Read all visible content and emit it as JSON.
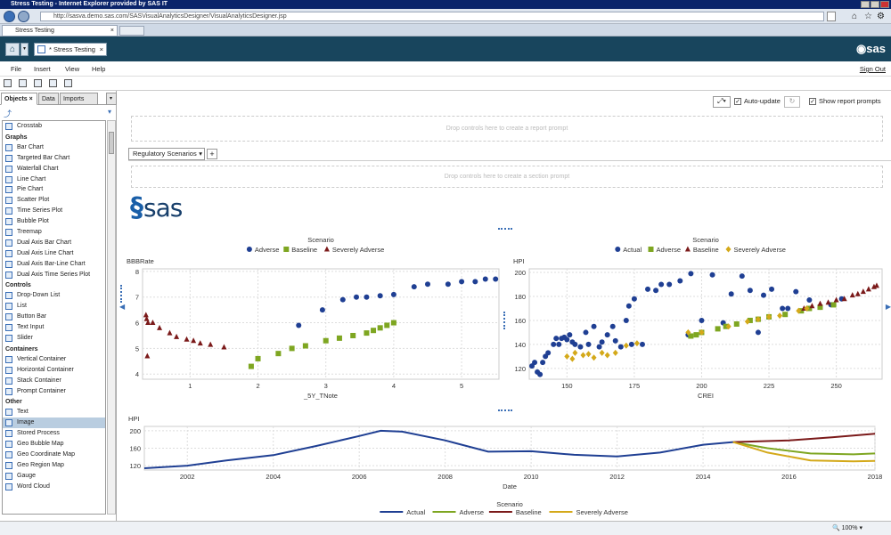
{
  "window": {
    "title": "Stress Testing - Internet Explorer provided by SAS IT"
  },
  "browser": {
    "url": "http://sasva.demo.sas.com/SASVisualAnalyticsDesigner/VisualAnalyticsDesigner.jsp",
    "tab_label": "Stress Testing",
    "zoom": "100%"
  },
  "app": {
    "tab_label": "* Stress Testing",
    "logo": "sas",
    "sign_out": "Sign Out",
    "home_icon": "home-icon"
  },
  "menu": {
    "file": "File",
    "insert": "Insert",
    "view": "View",
    "help": "Help"
  },
  "left_panel": {
    "tabs": [
      "Objects",
      "Data",
      "Imports"
    ],
    "first_item": "Crosstab",
    "sections": [
      {
        "header": "Graphs",
        "items": [
          "Bar Chart",
          "Targeted Bar Chart",
          "Waterfall Chart",
          "Line Chart",
          "Pie Chart",
          "Scatter Plot",
          "Time Series Plot",
          "Bubble Plot",
          "Treemap",
          "Dual Axis Bar Chart",
          "Dual Axis Line Chart",
          "Dual Axis Bar-Line Chart",
          "Dual Axis Time Series Plot"
        ]
      },
      {
        "header": "Controls",
        "items": [
          "Drop-Down List",
          "List",
          "Button Bar",
          "Text Input",
          "Slider"
        ]
      },
      {
        "header": "Containers",
        "items": [
          "Vertical Container",
          "Horizontal Container",
          "Stack Container",
          "Prompt Container"
        ]
      },
      {
        "header": "Other",
        "items": [
          "Text",
          "Image",
          "Stored Process",
          "Geo Bubble Map",
          "Geo Coordinate Map",
          "Geo Region Map",
          "Gauge",
          "Word Cloud"
        ]
      }
    ],
    "selected": "Image"
  },
  "report": {
    "auto_update": "Auto-update",
    "show_prompts": "Show report prompts",
    "report_prompt": "Drop controls here to create a report prompt",
    "section_tab": "Regulatory Scenarios",
    "section_prompt": "Drop controls here to create a section prompt",
    "logo_text": "sas"
  },
  "colors": {
    "actual": "#1f3f93",
    "adverse": "#7ea621",
    "baseline": "#7b1a1a",
    "severe": "#d4a91a"
  },
  "chart_data": [
    {
      "type": "scatter",
      "title": "",
      "legend_title": "Scenario",
      "legend_position": "top",
      "xlabel": "_5Y_TNote",
      "ylabel": "BBBRate",
      "xlim": [
        0.3,
        5.55
      ],
      "ylim": [
        3.8,
        8.1
      ],
      "xticks": [
        1,
        2,
        3,
        4,
        5
      ],
      "yticks": [
        4,
        5,
        6,
        7,
        8
      ],
      "series": [
        {
          "name": "Adverse",
          "color": "#1f3f93",
          "shape": "circle",
          "points": [
            [
              2.6,
              5.9
            ],
            [
              2.95,
              6.5
            ],
            [
              3.25,
              6.9
            ],
            [
              3.45,
              7.0
            ],
            [
              3.6,
              7.0
            ],
            [
              3.8,
              7.05
            ],
            [
              4.0,
              7.1
            ],
            [
              4.3,
              7.4
            ],
            [
              4.5,
              7.5
            ],
            [
              4.8,
              7.5
            ],
            [
              5.0,
              7.6
            ],
            [
              5.2,
              7.6
            ],
            [
              5.35,
              7.7
            ],
            [
              5.5,
              7.7
            ]
          ]
        },
        {
          "name": "Baseline",
          "color": "#7ea621",
          "shape": "square",
          "points": [
            [
              1.9,
              4.3
            ],
            [
              2.0,
              4.6
            ],
            [
              2.3,
              4.8
            ],
            [
              2.5,
              5.0
            ],
            [
              2.7,
              5.1
            ],
            [
              3.0,
              5.3
            ],
            [
              3.2,
              5.4
            ],
            [
              3.4,
              5.5
            ],
            [
              3.6,
              5.6
            ],
            [
              3.7,
              5.7
            ],
            [
              3.8,
              5.8
            ],
            [
              3.9,
              5.9
            ],
            [
              4.0,
              6.0
            ]
          ]
        },
        {
          "name": "Severely Adverse",
          "color": "#7b1a1a",
          "shape": "triangle",
          "points": [
            [
              0.35,
              6.3
            ],
            [
              0.36,
              6.15
            ],
            [
              0.38,
              6.0
            ],
            [
              0.45,
              6.0
            ],
            [
              0.55,
              5.8
            ],
            [
              0.7,
              5.6
            ],
            [
              0.8,
              5.45
            ],
            [
              0.95,
              5.35
            ],
            [
              1.05,
              5.3
            ],
            [
              1.15,
              5.2
            ],
            [
              1.3,
              5.15
            ],
            [
              1.5,
              5.05
            ],
            [
              0.37,
              4.7
            ]
          ]
        }
      ]
    },
    {
      "type": "scatter",
      "title": "",
      "legend_title": "Scenario",
      "legend_position": "top",
      "xlabel": "CREI",
      "ylabel": "HPI",
      "xlim": [
        136,
        267
      ],
      "ylim": [
        111,
        203
      ],
      "xticks": [
        150,
        175,
        200,
        225,
        250
      ],
      "yticks": [
        120,
        140,
        160,
        180,
        200
      ],
      "series": [
        {
          "name": "Actual",
          "color": "#1f3f93",
          "shape": "circle",
          "points": [
            [
              137,
              122
            ],
            [
              138,
              125
            ],
            [
              139,
              117
            ],
            [
              140,
              115
            ],
            [
              141,
              125
            ],
            [
              142,
              130
            ],
            [
              143,
              133
            ],
            [
              145,
              140
            ],
            [
              146,
              145
            ],
            [
              147,
              140
            ],
            [
              148,
              145
            ],
            [
              149,
              146
            ],
            [
              150,
              144
            ],
            [
              151,
              148
            ],
            [
              152,
              142
            ],
            [
              153,
              140
            ],
            [
              155,
              138
            ],
            [
              157,
              150
            ],
            [
              158,
              140
            ],
            [
              160,
              155
            ],
            [
              162,
              138
            ],
            [
              163,
              142
            ],
            [
              165,
              148
            ],
            [
              167,
              155
            ],
            [
              168,
              143
            ],
            [
              170,
              138
            ],
            [
              172,
              160
            ],
            [
              173,
              172
            ],
            [
              174,
              140
            ],
            [
              175,
              178
            ],
            [
              178,
              140
            ],
            [
              180,
              186
            ],
            [
              183,
              185
            ],
            [
              185,
              190
            ],
            [
              188,
              190
            ],
            [
              192,
              193
            ],
            [
              195,
              148
            ],
            [
              196,
              199
            ],
            [
              200,
              160
            ],
            [
              204,
              198
            ],
            [
              208,
              158
            ],
            [
              211,
              182
            ],
            [
              215,
              197
            ],
            [
              218,
              185
            ],
            [
              221,
              150
            ],
            [
              223,
              181
            ],
            [
              226,
              186
            ],
            [
              230,
              170
            ],
            [
              232,
              170
            ],
            [
              235,
              184
            ],
            [
              240,
              177
            ],
            [
              244,
              171
            ],
            [
              248,
              173
            ],
            [
              252,
              178
            ]
          ]
        },
        {
          "name": "Adverse",
          "color": "#7ea621",
          "shape": "square",
          "points": [
            [
              196,
              147
            ],
            [
              198,
              148
            ],
            [
              200,
              150
            ],
            [
              206,
              153
            ],
            [
              209,
              155
            ],
            [
              213,
              157
            ],
            [
              218,
              160
            ],
            [
              221,
              161
            ],
            [
              225,
              163
            ],
            [
              231,
              165
            ],
            [
              237,
              168
            ],
            [
              240,
              170
            ],
            [
              244,
              171
            ],
            [
              249,
              173
            ]
          ]
        },
        {
          "name": "Baseline",
          "color": "#7b1a1a",
          "shape": "triangle",
          "points": [
            [
              238,
              170
            ],
            [
              241,
              172
            ],
            [
              244,
              174
            ],
            [
              247,
              175
            ],
            [
              250,
              177
            ],
            [
              253,
              178
            ],
            [
              256,
              181
            ],
            [
              258,
              182
            ],
            [
              260,
              184
            ],
            [
              262,
              186
            ],
            [
              264,
              188
            ],
            [
              265,
              189
            ]
          ]
        },
        {
          "name": "Severely Adverse",
          "color": "#d4a91a",
          "shape": "diamond",
          "points": [
            [
              150,
              130
            ],
            [
              152,
              128
            ],
            [
              153,
              133
            ],
            [
              156,
              131
            ],
            [
              158,
              132
            ],
            [
              160,
              129
            ],
            [
              163,
              133
            ],
            [
              165,
              131
            ],
            [
              168,
              133
            ],
            [
              172,
              139
            ],
            [
              176,
              141
            ],
            [
              195,
              150
            ],
            [
              200,
              150
            ],
            [
              210,
              155
            ],
            [
              217,
              159
            ],
            [
              221,
              161
            ],
            [
              225,
              163
            ],
            [
              229,
              164
            ],
            [
              236,
              168
            ],
            [
              239,
              170
            ]
          ]
        }
      ]
    },
    {
      "type": "line",
      "title": "",
      "legend_title": "Scenario",
      "legend_position": "bottom",
      "xlabel": "Date",
      "ylabel": "HPI",
      "xlim": [
        2001,
        2018
      ],
      "ylim": [
        110,
        210
      ],
      "xticks": [
        2002,
        2004,
        2006,
        2008,
        2010,
        2012,
        2014,
        2016,
        2018
      ],
      "yticks": [
        120,
        160,
        200
      ],
      "series": [
        {
          "name": "Actual",
          "color": "#1f3f93",
          "points": [
            [
              2001,
              114
            ],
            [
              2002,
              120
            ],
            [
              2003,
              133
            ],
            [
              2004,
              144
            ],
            [
              2005,
              165
            ],
            [
              2006,
              188
            ],
            [
              2006.5,
              200
            ],
            [
              2007,
              198
            ],
            [
              2008,
              178
            ],
            [
              2009,
              152
            ],
            [
              2010,
              153
            ],
            [
              2011,
              145
            ],
            [
              2012,
              141
            ],
            [
              2013,
              150
            ],
            [
              2014,
              168
            ],
            [
              2014.7,
              174
            ]
          ]
        },
        {
          "name": "Adverse",
          "color": "#7ea621",
          "points": [
            [
              2014.7,
              174
            ],
            [
              2015.5,
              160
            ],
            [
              2016.5,
              148
            ],
            [
              2017.5,
              146
            ],
            [
              2018,
              148
            ]
          ]
        },
        {
          "name": "Baseline",
          "color": "#7b1a1a",
          "points": [
            [
              2014.7,
              174
            ],
            [
              2016,
              178
            ],
            [
              2017,
              185
            ],
            [
              2018,
              193
            ]
          ]
        },
        {
          "name": "Severely Adverse",
          "color": "#d4a91a",
          "points": [
            [
              2014.7,
              174
            ],
            [
              2015.5,
              150
            ],
            [
              2016.5,
              132
            ],
            [
              2017.5,
              130
            ],
            [
              2018,
              131
            ]
          ]
        }
      ]
    }
  ]
}
